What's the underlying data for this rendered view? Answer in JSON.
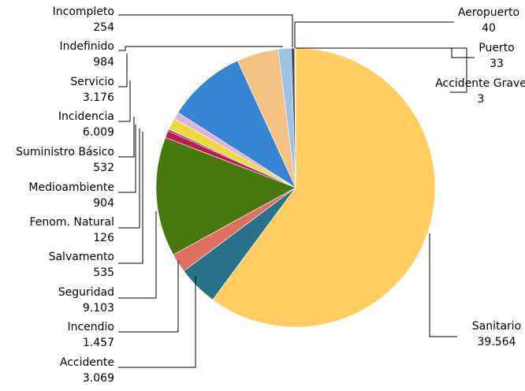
{
  "chart_data": {
    "type": "pie",
    "title": "",
    "legend": "none",
    "slices": [
      {
        "label": "Sanitario",
        "value_label": "39.564",
        "value": 39564,
        "color": "#FFCD62"
      },
      {
        "label": "Accidente",
        "value_label": "3.069",
        "value": 3069,
        "color": "#287389"
      },
      {
        "label": "Incendio",
        "value_label": "1.457",
        "value": 1457,
        "color": "#DE7060"
      },
      {
        "label": "Seguridad",
        "value_label": "9.103",
        "value": 9103,
        "color": "#48760F"
      },
      {
        "label": "Salvamento",
        "value_label": "535",
        "value": 535,
        "color": "#C0184E"
      },
      {
        "label": "Fenom. Natural",
        "value_label": "126",
        "value": 126,
        "color": "#5E2B87"
      },
      {
        "label": "Medioambiente",
        "value_label": "904",
        "value": 904,
        "color": "#F2D73E"
      },
      {
        "label": "Suministro Básico",
        "value_label": "532",
        "value": 532,
        "color": "#DEB2DF"
      },
      {
        "label": "Incidencia",
        "value_label": "6.009",
        "value": 6009,
        "color": "#3785D2"
      },
      {
        "label": "Servicio",
        "value_label": "3.176",
        "value": 3176,
        "color": "#F4C384"
      },
      {
        "label": "Indefinido",
        "value_label": "984",
        "value": 984,
        "color": "#9CC3E5"
      },
      {
        "label": "Incompleto",
        "value_label": "254",
        "value": 254,
        "color": "#4A4A4A"
      },
      {
        "label": "Aeropuerto",
        "value_label": "40",
        "value": 40,
        "color": "#E53434"
      },
      {
        "label": "Puerto",
        "value_label": "33",
        "value": 33,
        "color": "#1F77B4"
      },
      {
        "label": "Accidente Grave",
        "value_label": "3",
        "value": 3,
        "color": "#7F0000"
      }
    ]
  }
}
